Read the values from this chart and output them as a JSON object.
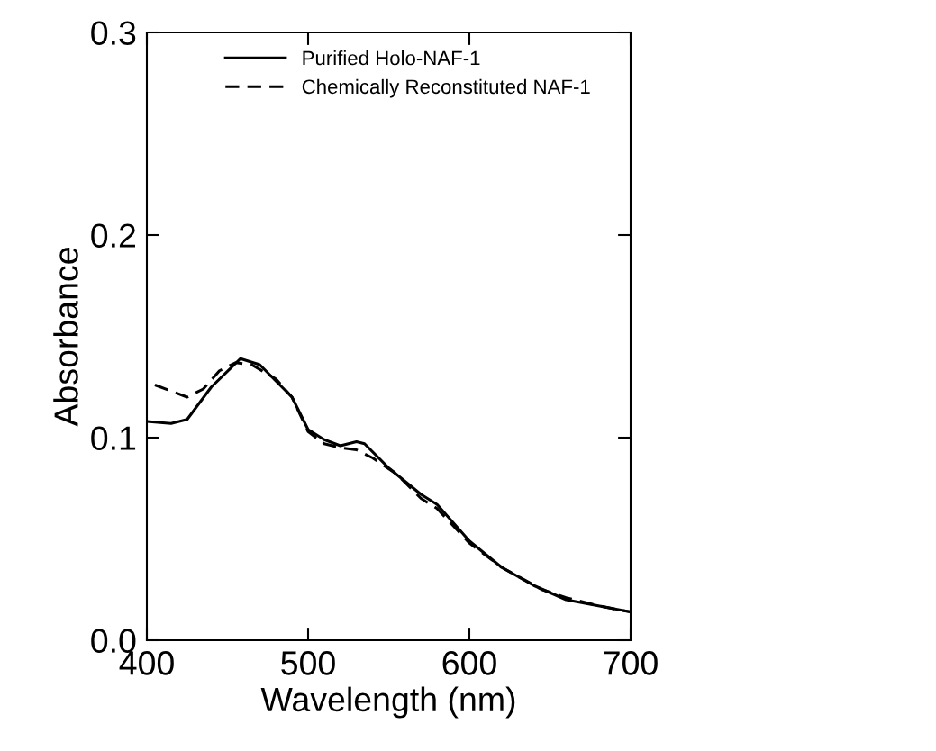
{
  "chart_data": {
    "type": "line",
    "xlabel": "Wavelength (nm)",
    "ylabel": "Absorbance",
    "xlim": [
      400,
      700
    ],
    "xticks": [
      400,
      500,
      600,
      700
    ],
    "ylim": [
      0.0,
      0.3
    ],
    "yticks": [
      {
        "value": 0.0,
        "label": "0.0"
      },
      {
        "value": 0.1,
        "label": "0.1"
      },
      {
        "value": 0.2,
        "label": "0.2"
      },
      {
        "value": 0.3,
        "label": "0.3"
      }
    ],
    "grid": false,
    "legend": "top",
    "marker": "none",
    "series": [
      {
        "name": "Purified Holo-NAF-1",
        "color": "#000000",
        "line_style": "solid",
        "x": [
          400,
          415,
          425,
          440,
          458,
          470,
          490,
          500,
          510,
          520,
          530,
          535,
          550,
          570,
          580,
          600,
          620,
          640,
          660,
          680,
          700
        ],
        "values": [
          0.108,
          0.107,
          0.109,
          0.125,
          0.139,
          0.136,
          0.12,
          0.104,
          0.099,
          0.096,
          0.098,
          0.097,
          0.085,
          0.072,
          0.067,
          0.049,
          0.036,
          0.027,
          0.02,
          0.017,
          0.014
        ]
      },
      {
        "name": "Chemically Reconstituted NAF-1",
        "color": "#000000",
        "line_style": "dashed",
        "x": [
          405,
          415,
          425,
          435,
          445,
          455,
          465,
          480,
          490,
          500,
          510,
          520,
          530,
          540,
          555,
          570,
          580,
          600,
          620,
          645,
          660,
          680,
          700
        ],
        "values": [
          0.126,
          0.123,
          0.12,
          0.124,
          0.133,
          0.137,
          0.136,
          0.129,
          0.12,
          0.103,
          0.097,
          0.095,
          0.094,
          0.09,
          0.082,
          0.07,
          0.065,
          0.048,
          0.036,
          0.025,
          0.021,
          0.017,
          0.014
        ]
      }
    ]
  }
}
